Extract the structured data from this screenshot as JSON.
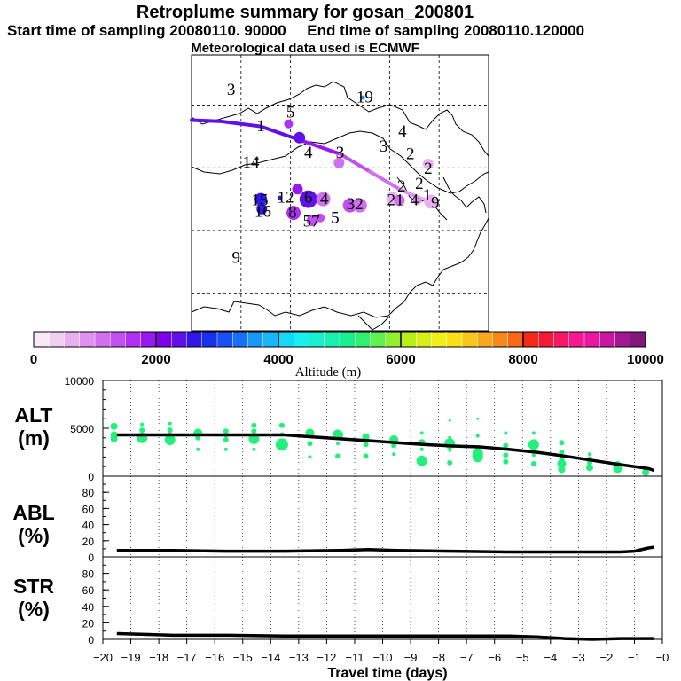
{
  "header": {
    "title": "Retroplume summary for gosan_200801",
    "start_label": "Start time of sampling 20080110. 90000",
    "end_label": "End time of sampling 20080110.120000",
    "met_label": "Meteorological data used is ECMWF"
  },
  "colorbar": {
    "axis_label": "Altitude (m)",
    "ticks": [
      "0",
      "2000",
      "4000",
      "6000",
      "8000",
      "10000"
    ],
    "min": 0,
    "max": 10000,
    "step": 250,
    "colors": [
      "#f8e8f8",
      "#f0d0f0",
      "#e8b0f0",
      "#e090f0",
      "#d070f0",
      "#c050f0",
      "#b030f0",
      "#9818f0",
      "#8000e8",
      "#6010e8",
      "#3018e8",
      "#1830f0",
      "#1850f8",
      "#1870f8",
      "#1898f8",
      "#18b8f8",
      "#18d8f8",
      "#18f0f0",
      "#18f0d0",
      "#18f0b0",
      "#18f090",
      "#30f070",
      "#60f050",
      "#90f030",
      "#b8f018",
      "#d8f018",
      "#f0f018",
      "#f8e018",
      "#f8c818",
      "#f8a818",
      "#f88818",
      "#f86818",
      "#f82818",
      "#f81838",
      "#f81868",
      "#f81890",
      "#e818a0",
      "#c818a0",
      "#a01890",
      "#801878"
    ]
  },
  "map": {
    "labels": [
      {
        "text": "3",
        "lon": 104,
        "lat": 51.3
      },
      {
        "text": "19",
        "lon": 117.5,
        "lat": 50.7
      },
      {
        "text": "1",
        "lon": 107,
        "lat": 48.4
      },
      {
        "text": "5",
        "lon": 110,
        "lat": 49.5
      },
      {
        "text": "4",
        "lon": 121.3,
        "lat": 48.0
      },
      {
        "text": "3",
        "lon": 119.4,
        "lat": 46.8
      },
      {
        "text": "4",
        "lon": 111.8,
        "lat": 46.3
      },
      {
        "text": "3",
        "lon": 115,
        "lat": 46.3
      },
      {
        "text": "2",
        "lon": 122.1,
        "lat": 46.2
      },
      {
        "text": "14",
        "lon": 106,
        "lat": 45.5
      },
      {
        "text": "2",
        "lon": 123.9,
        "lat": 45.0
      },
      {
        "text": "2",
        "lon": 123.0,
        "lat": 43.8
      },
      {
        "text": "2",
        "lon": 121.2,
        "lat": 43.6
      },
      {
        "text": "1",
        "lon": 123.8,
        "lat": 42.9
      },
      {
        "text": "12",
        "lon": 109.5,
        "lat": 42.7
      },
      {
        "text": "15",
        "lon": 106.9,
        "lat": 42.5
      },
      {
        "text": "16",
        "lon": 107.2,
        "lat": 41.6
      },
      {
        "text": "6",
        "lon": 111.8,
        "lat": 42.7
      },
      {
        "text": "4",
        "lon": 113.4,
        "lat": 42.6
      },
      {
        "text": "32",
        "lon": 116.5,
        "lat": 42.2
      },
      {
        "text": "21",
        "lon": 120.6,
        "lat": 42.5
      },
      {
        "text": "4",
        "lon": 122.5,
        "lat": 42.5
      },
      {
        "text": "9",
        "lon": 124.6,
        "lat": 42.3
      },
      {
        "text": "8",
        "lon": 110.2,
        "lat": 41.5
      },
      {
        "text": "57",
        "lon": 112.1,
        "lat": 40.8
      },
      {
        "text": "5",
        "lon": 114.5,
        "lat": 41.1
      },
      {
        "text": "9",
        "lon": 104.5,
        "lat": 37.9
      }
    ],
    "dots": [
      {
        "lon": 107.0,
        "lat": 42.5,
        "r": 7,
        "alt": 2600
      },
      {
        "lon": 107.1,
        "lat": 41.7,
        "r": 6,
        "alt": 2500
      },
      {
        "lon": 110.9,
        "lat": 47.4,
        "r": 6.5,
        "alt": 2400
      },
      {
        "lon": 109.8,
        "lat": 48.5,
        "r": 5,
        "alt": 1500
      },
      {
        "lon": 110.7,
        "lat": 43.3,
        "r": 6,
        "alt": 1900
      },
      {
        "lon": 111.8,
        "lat": 42.5,
        "r": 10,
        "alt": 2400
      },
      {
        "lon": 110.3,
        "lat": 41.4,
        "r": 8,
        "alt": 1500
      },
      {
        "lon": 113.3,
        "lat": 42.5,
        "r": 8,
        "alt": 1100
      },
      {
        "lon": 116.0,
        "lat": 42.0,
        "r": 8,
        "alt": 1400
      },
      {
        "lon": 117.0,
        "lat": 42.0,
        "r": 8,
        "alt": 1200
      },
      {
        "lon": 112.2,
        "lat": 40.8,
        "r": 6.5,
        "alt": 1300
      },
      {
        "lon": 113.0,
        "lat": 41.0,
        "r": 5,
        "alt": 1400
      },
      {
        "lon": 114.9,
        "lat": 45.4,
        "r": 6,
        "alt": 1100
      },
      {
        "lon": 120.3,
        "lat": 42.6,
        "r": 7,
        "alt": 700
      },
      {
        "lon": 121.0,
        "lat": 42.4,
        "r": 6,
        "alt": 1000
      },
      {
        "lon": 123.9,
        "lat": 45.3,
        "r": 6,
        "alt": 700
      },
      {
        "lon": 122.8,
        "lat": 42.4,
        "r": 5,
        "alt": 900
      },
      {
        "lon": 124.2,
        "lat": 42.3,
        "r": 8,
        "alt": 700
      },
      {
        "lon": 117.3,
        "lat": 50.6,
        "r": 2.5,
        "alt": 3700
      },
      {
        "lon": 108.9,
        "lat": 42.6,
        "r": 2.5,
        "alt": 2600
      },
      {
        "lon": 106.6,
        "lat": 45.7,
        "r": 2,
        "alt": 3000
      }
    ],
    "track": [
      {
        "lon": 100.0,
        "lat": 48.8,
        "alt": 2400
      },
      {
        "lon": 103.0,
        "lat": 48.7,
        "alt": 2500
      },
      {
        "lon": 107.0,
        "lat": 48.3,
        "alt": 2450
      },
      {
        "lon": 111.0,
        "lat": 47.2,
        "alt": 2100
      },
      {
        "lon": 115.0,
        "lat": 46.1,
        "alt": 1600
      },
      {
        "lon": 118.0,
        "lat": 44.7,
        "alt": 1300
      },
      {
        "lon": 121.0,
        "lat": 43.3,
        "alt": 1050
      },
      {
        "lon": 123.0,
        "lat": 42.6,
        "alt": 700
      },
      {
        "lon": 124.5,
        "lat": 42.3,
        "alt": 500
      }
    ]
  },
  "panels": {
    "alt": {
      "label1": "ALT",
      "label2": "(m)",
      "yticks": [
        "0",
        "5000",
        "10000"
      ]
    },
    "abl": {
      "label1": "ABL",
      "label2": "(%)",
      "yticks": [
        "0",
        "20",
        "40",
        "60",
        "80"
      ]
    },
    "str": {
      "label1": "STR",
      "label2": "(%)",
      "yticks": [
        "0",
        "20",
        "40",
        "60",
        "80"
      ]
    }
  },
  "chart_data": {
    "type": "line",
    "x_axis_label": "Travel time (days)",
    "x_ticks": [
      "−20",
      "−19",
      "−18",
      "−17",
      "−16",
      "−15",
      "−14",
      "−13",
      "−12",
      "−11",
      "−10",
      "−9",
      "−8",
      "−7",
      "−6",
      "−5",
      "−4",
      "−3",
      "−2",
      "−1",
      "−0"
    ],
    "xlim": [
      -20,
      0
    ],
    "series": [
      {
        "name": "ALT (m)",
        "ylim": [
          0,
          10000
        ],
        "x": [
          -19.5,
          -18.5,
          -17.5,
          -16.5,
          -15.5,
          -14.5,
          -13.5,
          -12.5,
          -11.5,
          -10.5,
          -9.5,
          -8.5,
          -7.5,
          -6.5,
          -5.5,
          -4.5,
          -3.5,
          -2.5,
          -1.5,
          -0.5,
          -0.3
        ],
        "values": [
          4300,
          4300,
          4300,
          4300,
          4300,
          4300,
          4300,
          4100,
          3900,
          3700,
          3500,
          3300,
          3150,
          3050,
          2800,
          2500,
          2100,
          1650,
          1200,
          800,
          600
        ]
      },
      {
        "name": "ABL (%)",
        "ylim": [
          0,
          100
        ],
        "x": [
          -19.5,
          -17.5,
          -15.5,
          -13.5,
          -11.5,
          -10.5,
          -9.5,
          -7.5,
          -5.5,
          -3.5,
          -1.5,
          -1.0,
          -0.5,
          -0.3
        ],
        "values": [
          8,
          8,
          7,
          7,
          8,
          9,
          8,
          7,
          6,
          6,
          6,
          7,
          11,
          12
        ]
      },
      {
        "name": "STR (%)",
        "ylim": [
          0,
          100
        ],
        "x": [
          -19.5,
          -18.5,
          -17.5,
          -15.5,
          -13.5,
          -11.5,
          -9.5,
          -7.5,
          -5.5,
          -4.5,
          -3.5,
          -2.5,
          -1.5,
          -0.5,
          -0.3
        ],
        "values": [
          7,
          6,
          5,
          5,
          4,
          4,
          4,
          4,
          4,
          3,
          1,
          0,
          1,
          1,
          1
        ]
      }
    ],
    "alt_scatter": [
      {
        "x": -19.6,
        "y": 5200,
        "r": 4
      },
      {
        "x": -19.6,
        "y": 4300,
        "r": 4
      },
      {
        "x": -19.6,
        "y": 3900,
        "r": 4
      },
      {
        "x": -18.6,
        "y": 5400,
        "r": 2
      },
      {
        "x": -18.6,
        "y": 4800,
        "r": 3
      },
      {
        "x": -18.6,
        "y": 4000,
        "r": 6
      },
      {
        "x": -17.6,
        "y": 5500,
        "r": 2
      },
      {
        "x": -17.6,
        "y": 4800,
        "r": 3
      },
      {
        "x": -17.6,
        "y": 4300,
        "r": 3
      },
      {
        "x": -17.6,
        "y": 3800,
        "r": 6
      },
      {
        "x": -16.6,
        "y": 4500,
        "r": 5
      },
      {
        "x": -16.6,
        "y": 4000,
        "r": 3
      },
      {
        "x": -16.6,
        "y": 2800,
        "r": 2
      },
      {
        "x": -15.6,
        "y": 4700,
        "r": 3
      },
      {
        "x": -15.6,
        "y": 4300,
        "r": 3
      },
      {
        "x": -15.6,
        "y": 3800,
        "r": 3
      },
      {
        "x": -15.6,
        "y": 2800,
        "r": 2
      },
      {
        "x": -14.6,
        "y": 5300,
        "r": 3
      },
      {
        "x": -14.6,
        "y": 4700,
        "r": 3
      },
      {
        "x": -14.6,
        "y": 3900,
        "r": 6
      },
      {
        "x": -14.6,
        "y": 2800,
        "r": 2
      },
      {
        "x": -13.6,
        "y": 5300,
        "r": 3
      },
      {
        "x": -13.6,
        "y": 4400,
        "r": 2
      },
      {
        "x": -13.6,
        "y": 3300,
        "r": 7
      },
      {
        "x": -12.6,
        "y": 4500,
        "r": 5
      },
      {
        "x": -12.6,
        "y": 3400,
        "r": 3
      },
      {
        "x": -12.6,
        "y": 2000,
        "r": 2
      },
      {
        "x": -11.6,
        "y": 4300,
        "r": 6
      },
      {
        "x": -11.6,
        "y": 3400,
        "r": 2
      },
      {
        "x": -11.6,
        "y": 2100,
        "r": 3
      },
      {
        "x": -10.6,
        "y": 4100,
        "r": 4
      },
      {
        "x": -10.6,
        "y": 3300,
        "r": 3
      },
      {
        "x": -10.6,
        "y": 2100,
        "r": 3
      },
      {
        "x": -9.6,
        "y": 3800,
        "r": 5
      },
      {
        "x": -9.6,
        "y": 3200,
        "r": 3
      },
      {
        "x": -9.6,
        "y": 2300,
        "r": 2
      },
      {
        "x": -8.6,
        "y": 4500,
        "r": 2
      },
      {
        "x": -8.6,
        "y": 3500,
        "r": 4
      },
      {
        "x": -8.6,
        "y": 2800,
        "r": 2
      },
      {
        "x": -8.6,
        "y": 1600,
        "r": 6
      },
      {
        "x": -7.6,
        "y": 5800,
        "r": 1.5
      },
      {
        "x": -7.6,
        "y": 4000,
        "r": 2
      },
      {
        "x": -7.6,
        "y": 3400,
        "r": 6
      },
      {
        "x": -7.6,
        "y": 2700,
        "r": 2
      },
      {
        "x": -7.6,
        "y": 1400,
        "r": 3
      },
      {
        "x": -6.6,
        "y": 6000,
        "r": 1.5
      },
      {
        "x": -6.6,
        "y": 4200,
        "r": 2
      },
      {
        "x": -6.6,
        "y": 2400,
        "r": 6
      },
      {
        "x": -6.6,
        "y": 2000,
        "r": 6
      },
      {
        "x": -5.6,
        "y": 4500,
        "r": 2
      },
      {
        "x": -5.6,
        "y": 3200,
        "r": 3
      },
      {
        "x": -5.6,
        "y": 2200,
        "r": 3
      },
      {
        "x": -5.6,
        "y": 1500,
        "r": 3
      },
      {
        "x": -4.6,
        "y": 4500,
        "r": 2
      },
      {
        "x": -4.6,
        "y": 3300,
        "r": 6
      },
      {
        "x": -4.6,
        "y": 2200,
        "r": 2
      },
      {
        "x": -4.6,
        "y": 1300,
        "r": 3
      },
      {
        "x": -3.6,
        "y": 3500,
        "r": 3
      },
      {
        "x": -3.6,
        "y": 2500,
        "r": 3
      },
      {
        "x": -3.6,
        "y": 1800,
        "r": 3
      },
      {
        "x": -3.6,
        "y": 1300,
        "r": 5
      },
      {
        "x": -3.6,
        "y": 700,
        "r": 4
      },
      {
        "x": -2.6,
        "y": 2300,
        "r": 2
      },
      {
        "x": -2.6,
        "y": 1800,
        "r": 3
      },
      {
        "x": -2.6,
        "y": 1400,
        "r": 3
      },
      {
        "x": -2.6,
        "y": 900,
        "r": 4
      },
      {
        "x": -1.6,
        "y": 1200,
        "r": 4
      },
      {
        "x": -1.6,
        "y": 800,
        "r": 5
      },
      {
        "x": -0.6,
        "y": 700,
        "r": 3
      },
      {
        "x": -0.6,
        "y": 400,
        "r": 4
      }
    ]
  }
}
